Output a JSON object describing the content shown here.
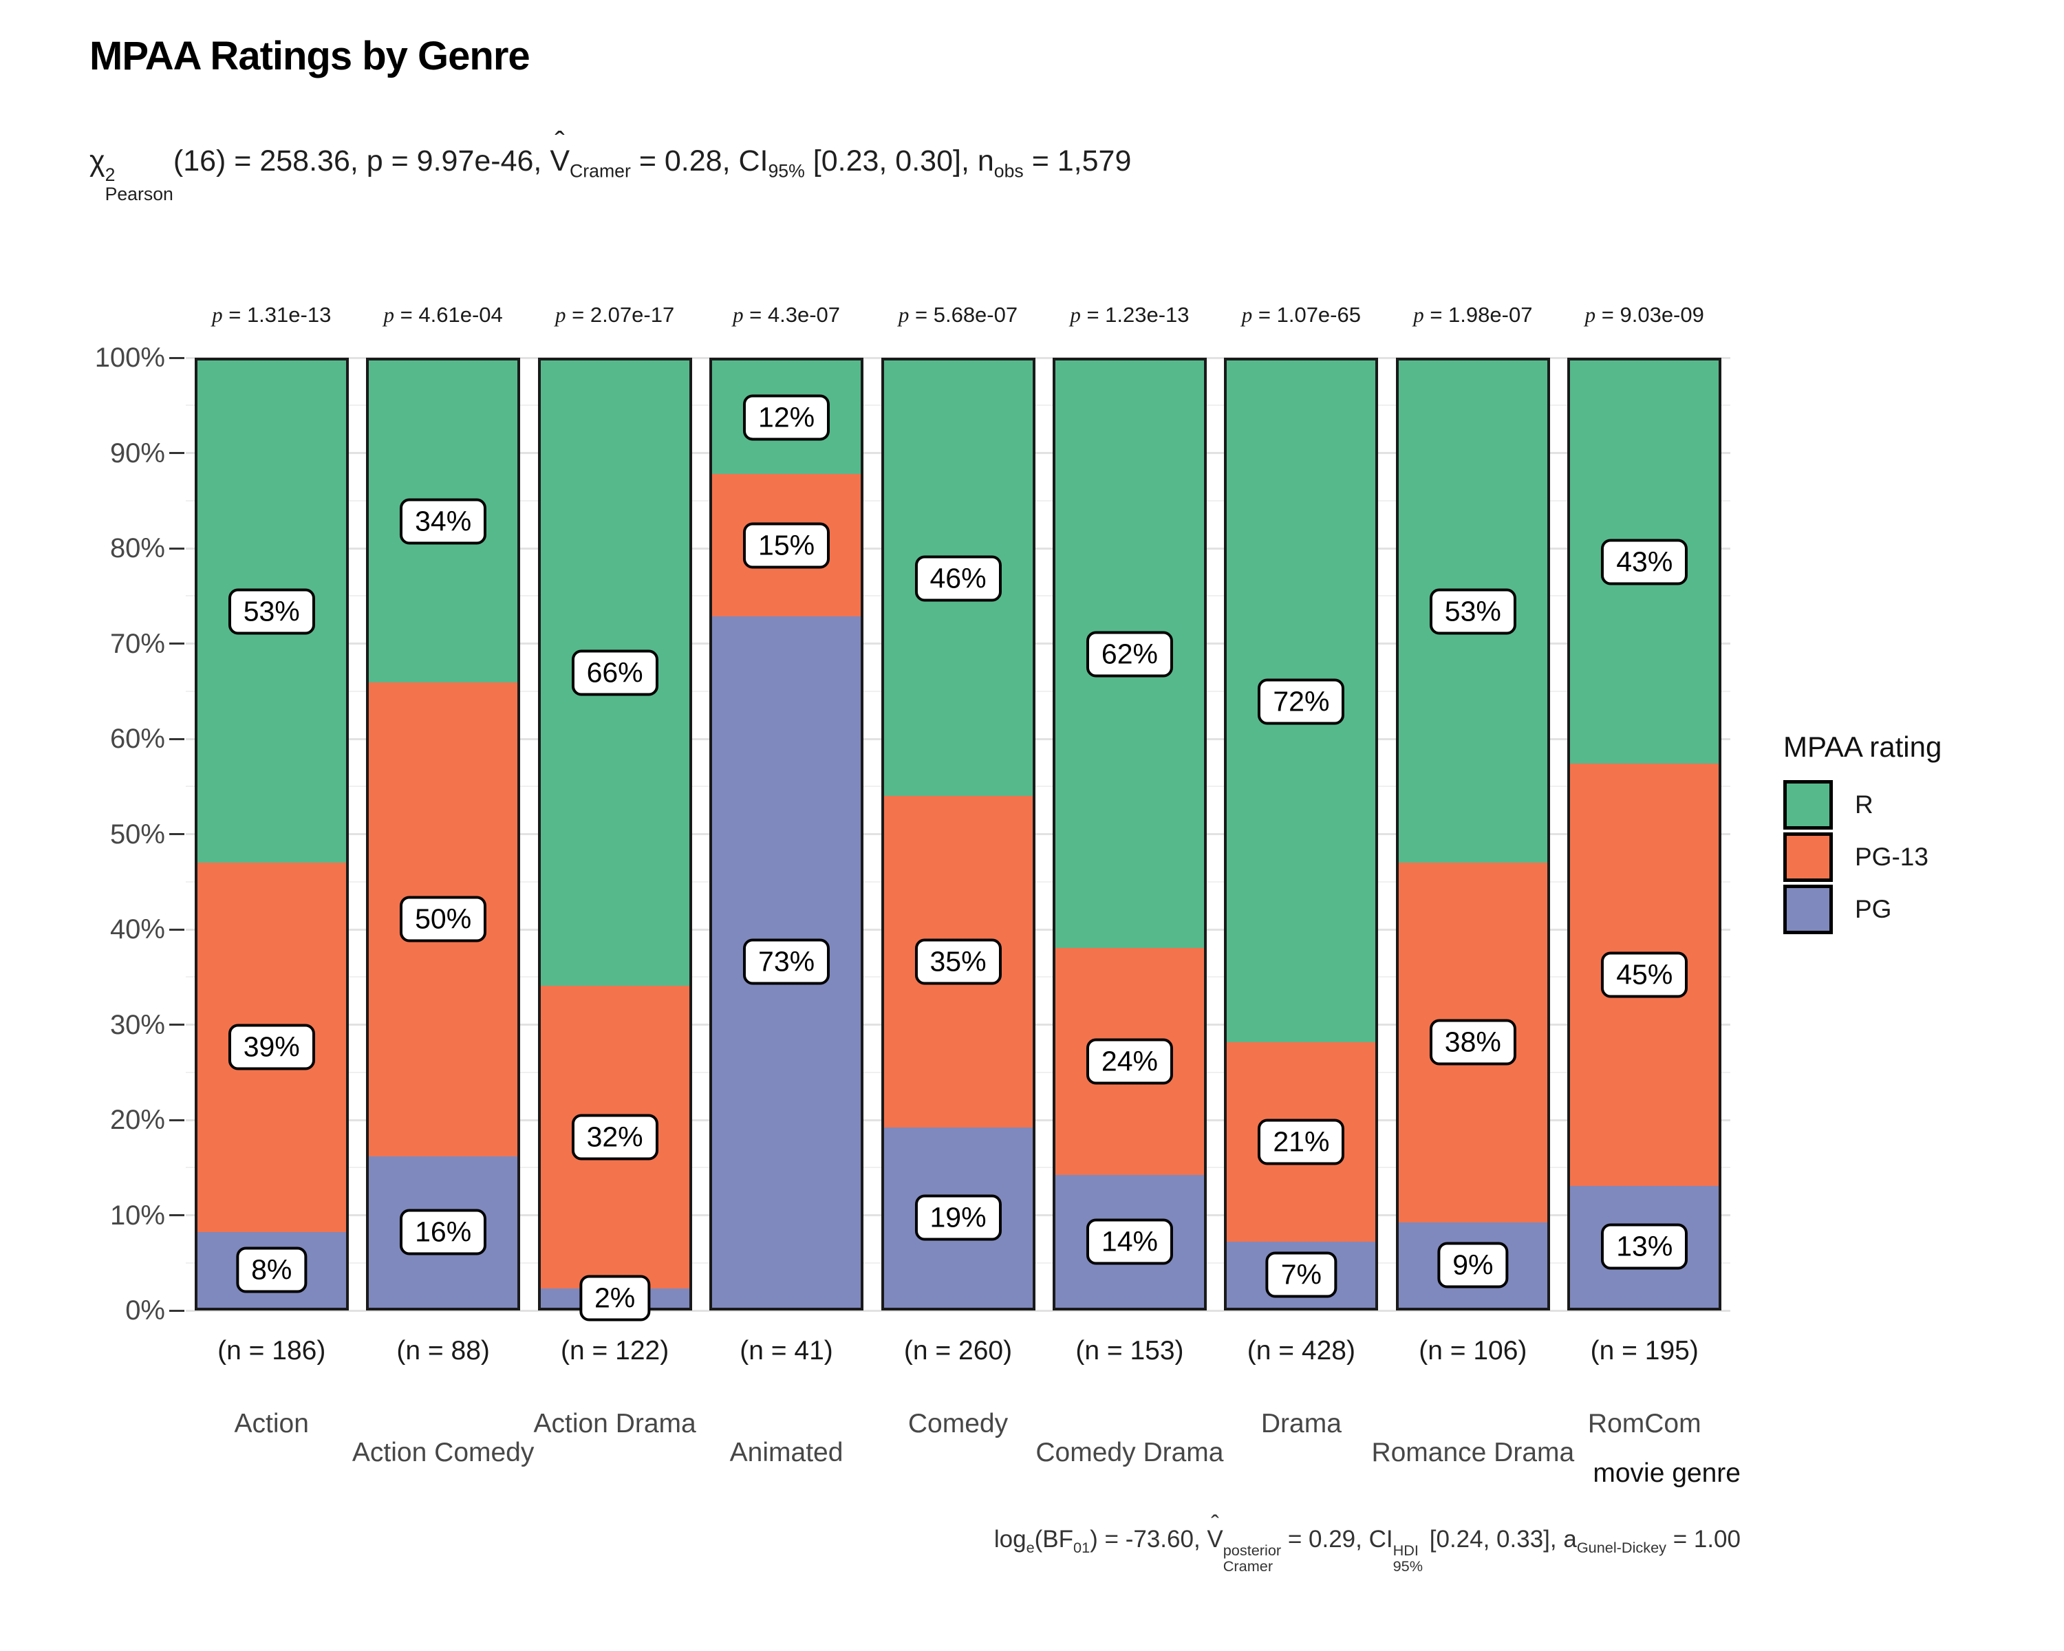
{
  "title": "MPAA Ratings by Genre",
  "subtitle_text": "χ²Pearson(16) = 258.36, p = 9.97e-46, V̂Cramer = 0.28, CI95% [0.23, 0.30], nobs = 1,579",
  "subtitle_html": "χ<span class='ss'><span>2</span><span>Pearson</span></span>(16) = 258.36, p = 9.97e-46, <span class='vhat'><span class='hat'>ˆ</span>V</span><sub>Cramer</sub> = 0.28, CI<sub>95%</sub> [0.23, 0.30], n<sub>obs</sub> = 1,579",
  "caption_text": "loge(BF01) = -73.60, V̂posterior Cramer = 0.29, CI HDI 95% [0.24, 0.33], aGunel-Dickey = 1.00",
  "caption_html": "log<sub>e</sub>(BF<sub>01</sub>) = -73.60, <span class='vhat'><span class='hat'>ˆ</span>V</span><span class='ss'><span>posterior</span><span>Cramer</span></span> = 0.29, CI<span class='ss'><span>HDI</span><span>95%</span></span> [0.24, 0.33], a<sub>Gunel-Dickey</sub> = 1.00",
  "xlabel": "movie genre",
  "legend": {
    "title": "MPAA rating",
    "items": [
      {
        "label": "R",
        "color": "#56B98C"
      },
      {
        "label": "PG-13",
        "color": "#F3734D"
      },
      {
        "label": "PG",
        "color": "#7F89BD"
      }
    ]
  },
  "chart_data": {
    "type": "bar",
    "stacked": true,
    "orientation": "vertical",
    "title": "MPAA Ratings by Genre",
    "xlabel": "movie genre",
    "ylabel": "",
    "ylim": [
      0,
      100
    ],
    "ytick_labels": [
      "0%",
      "10%",
      "20%",
      "30%",
      "40%",
      "50%",
      "60%",
      "70%",
      "80%",
      "90%",
      "100%"
    ],
    "grid": "horizontal major (10%) + minor (5%)",
    "legend_position": "right",
    "categories": [
      "Action",
      "Action Comedy",
      "Action Drama",
      "Animated",
      "Comedy",
      "Comedy Drama",
      "Drama",
      "Romance Drama",
      "RomCom"
    ],
    "sample_sizes": [
      "(n = 186)",
      "(n = 88)",
      "(n = 122)",
      "(n = 41)",
      "(n = 260)",
      "(n = 153)",
      "(n = 428)",
      "(n = 106)",
      "(n = 195)"
    ],
    "p_value_labels": [
      "p = 1.31e-13",
      "p = 4.61e-04",
      "p = 2.07e-17",
      "p = 4.3e-07",
      "p = 5.68e-07",
      "p = 1.23e-13",
      "p = 1.07e-65",
      "p = 1.98e-07",
      "p = 9.03e-09"
    ],
    "value_suffix": "%",
    "series": [
      {
        "name": "R",
        "color": "#56B98C",
        "values": [
          53,
          34,
          66,
          12,
          46,
          62,
          72,
          53,
          43
        ]
      },
      {
        "name": "PG-13",
        "color": "#F3734D",
        "values": [
          39,
          50,
          32,
          15,
          35,
          24,
          21,
          38,
          45
        ]
      },
      {
        "name": "PG",
        "color": "#7F89BD",
        "values": [
          8,
          16,
          2,
          73,
          19,
          14,
          7,
          9,
          13
        ]
      }
    ]
  },
  "colors": {
    "bar_border": "#1a1a1a",
    "grid_major": "#e2e2e2",
    "grid_minor": "#f0f0f0",
    "background": "#ffffff"
  }
}
